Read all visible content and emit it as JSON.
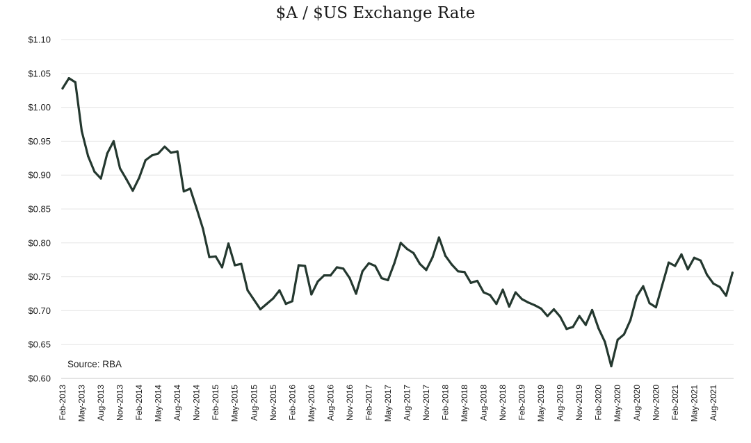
{
  "chart_data": {
    "type": "line",
    "title": "$A / $US Exchange Rate",
    "xlabel": "",
    "ylabel": "",
    "source": "Source: RBA",
    "ylim": [
      0.6,
      1.1
    ],
    "yticks": [
      "$0.60",
      "$0.65",
      "$0.70",
      "$0.75",
      "$0.80",
      "$0.85",
      "$0.90",
      "$0.95",
      "$1.00",
      "$1.05",
      "$1.10"
    ],
    "xticks": [
      "Feb-2013",
      "May-2013",
      "Aug-2013",
      "Nov-2013",
      "Feb-2014",
      "May-2014",
      "Aug-2014",
      "Nov-2014",
      "Feb-2015",
      "May-2015",
      "Aug-2015",
      "Nov-2015",
      "Feb-2016",
      "May-2016",
      "Aug-2016",
      "Nov-2016",
      "Feb-2017",
      "May-2017",
      "Aug-2017",
      "Nov-2017",
      "Feb-2018",
      "May-2018",
      "Aug-2018",
      "Nov-2018",
      "Feb-2019",
      "May-2019",
      "Aug-2019",
      "Nov-2019",
      "Feb-2020",
      "May-2020",
      "Aug-2020",
      "Nov-2020",
      "Feb-2021",
      "May-2021",
      "Aug-2021"
    ],
    "color": "#24382f",
    "grid": true,
    "series": [
      {
        "values": [
          1.028,
          1.043,
          1.037,
          0.965,
          0.928,
          0.905,
          0.895,
          0.932,
          0.95,
          0.91,
          0.894,
          0.877,
          0.896,
          0.922,
          0.929,
          0.932,
          0.942,
          0.933,
          0.935,
          0.876,
          0.88,
          0.851,
          0.821,
          0.779,
          0.78,
          0.764,
          0.799,
          0.767,
          0.769,
          0.73,
          0.716,
          0.702,
          0.71,
          0.718,
          0.73,
          0.71,
          0.714,
          0.767,
          0.766,
          0.724,
          0.743,
          0.752,
          0.752,
          0.764,
          0.762,
          0.748,
          0.725,
          0.758,
          0.77,
          0.766,
          0.748,
          0.745,
          0.77,
          0.8,
          0.791,
          0.785,
          0.769,
          0.76,
          0.779,
          0.808,
          0.781,
          0.768,
          0.758,
          0.757,
          0.741,
          0.744,
          0.727,
          0.723,
          0.71,
          0.731,
          0.706,
          0.727,
          0.717,
          0.712,
          0.708,
          0.703,
          0.692,
          0.702,
          0.691,
          0.673,
          0.676,
          0.692,
          0.679,
          0.701,
          0.674,
          0.654,
          0.618,
          0.657,
          0.665,
          0.686,
          0.721,
          0.736,
          0.711,
          0.705,
          0.738,
          0.771,
          0.766,
          0.783,
          0.761,
          0.778,
          0.774,
          0.753,
          0.74,
          0.735,
          0.722,
          0.756
        ]
      }
    ]
  }
}
